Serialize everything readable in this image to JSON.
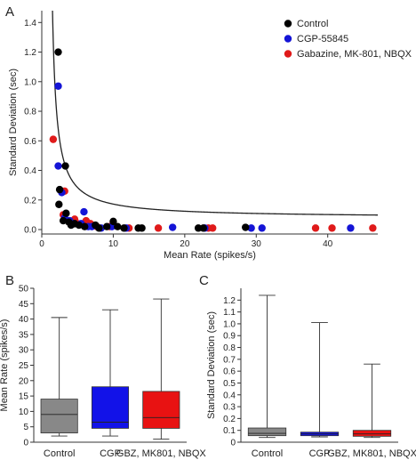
{
  "panels": {
    "A": "A",
    "B": "B",
    "C": "C"
  },
  "colors": {
    "control_scatter": "#000000",
    "cgp_scatter": "#1414d6",
    "gbz_scatter": "#e01a1a",
    "control_box": "#888888",
    "cgp_box": "#1212e8",
    "gbz_box": "#e81212",
    "fit_line": "#222222"
  },
  "chart_data": [
    {
      "type": "scatter",
      "xlabel": "Mean Rate (spikes/s)",
      "ylabel": "Standard Deviation (sec)",
      "xlim": [
        0,
        47
      ],
      "ylim": [
        -0.03,
        1.48
      ],
      "xticks": [
        0,
        10,
        20,
        30,
        40
      ],
      "yticks": [
        0.0,
        0.2,
        0.4,
        0.6,
        0.8,
        1.0,
        1.2,
        1.4
      ],
      "ytick_labels": [
        "0.0",
        "0.2",
        "0.4",
        "0.6",
        "0.8",
        "1.0",
        "1.2",
        "1.4"
      ],
      "legend": {
        "placement": "top-right"
      },
      "fit": {
        "type": "reciprocal",
        "a": 0.08,
        "k": 0.84,
        "x0": 0.9
      },
      "series": [
        {
          "name": "Control",
          "color": "#000000",
          "points": [
            [
              2.3,
              1.2
            ],
            [
              3.3,
              0.43
            ],
            [
              2.5,
              0.27
            ],
            [
              2.4,
              0.17
            ],
            [
              3.4,
              0.11
            ],
            [
              3.0,
              0.06
            ],
            [
              3.8,
              0.05
            ],
            [
              4.1,
              0.03
            ],
            [
              4.6,
              0.04
            ],
            [
              5.2,
              0.03
            ],
            [
              6.0,
              0.02
            ],
            [
              7.5,
              0.03
            ],
            [
              8.0,
              0.01
            ],
            [
              9.1,
              0.02
            ],
            [
              10.0,
              0.055
            ],
            [
              10.6,
              0.02
            ],
            [
              11.5,
              0.01
            ],
            [
              13.5,
              0.01
            ],
            [
              14.0,
              0.01
            ],
            [
              21.9,
              0.01
            ],
            [
              22.6,
              0.01
            ],
            [
              28.5,
              0.015
            ]
          ]
        },
        {
          "name": "CGP-55845",
          "color": "#1414d6",
          "points": [
            [
              2.3,
              0.97
            ],
            [
              2.3,
              0.43
            ],
            [
              2.8,
              0.25
            ],
            [
              3.2,
              0.08
            ],
            [
              3.9,
              0.06
            ],
            [
              4.5,
              0.04
            ],
            [
              5.5,
              0.04
            ],
            [
              5.9,
              0.12
            ],
            [
              6.5,
              0.02
            ],
            [
              7.0,
              0.02
            ],
            [
              8.3,
              0.01
            ],
            [
              9.8,
              0.02
            ],
            [
              11.8,
              0.01
            ],
            [
              18.3,
              0.015
            ],
            [
              22.8,
              0.01
            ],
            [
              29.3,
              0.01
            ],
            [
              30.8,
              0.01
            ],
            [
              43.2,
              0.01
            ]
          ]
        },
        {
          "name": "Gabazine, MK-801, NBQX",
          "color": "#e01a1a",
          "points": [
            [
              1.6,
              0.61
            ],
            [
              3.2,
              0.26
            ],
            [
              3.0,
              0.1
            ],
            [
              4.6,
              0.07
            ],
            [
              5.0,
              0.04
            ],
            [
              6.2,
              0.06
            ],
            [
              6.8,
              0.04
            ],
            [
              7.7,
              0.02
            ],
            [
              9.5,
              0.02
            ],
            [
              12.2,
              0.01
            ],
            [
              16.3,
              0.01
            ],
            [
              23.3,
              0.01
            ],
            [
              23.9,
              0.01
            ],
            [
              38.3,
              0.01
            ],
            [
              40.6,
              0.01
            ],
            [
              46.3,
              0.01
            ]
          ]
        }
      ]
    },
    {
      "type": "box",
      "ylabel": "Mean Rate (spikes/s)",
      "ylim": [
        0,
        50
      ],
      "yticks": [
        0,
        5,
        10,
        15,
        20,
        25,
        30,
        35,
        40,
        45,
        50
      ],
      "categories": [
        "Control",
        "CGP",
        "GBZ, MK801, NBQX"
      ],
      "boxes": [
        {
          "min": 2.0,
          "q1": 3.0,
          "median": 9.0,
          "q3": 14.0,
          "max": 40.5,
          "color": "#888888"
        },
        {
          "min": 2.0,
          "q1": 4.5,
          "median": 6.5,
          "q3": 18.0,
          "max": 43.0,
          "color": "#1212e8"
        },
        {
          "min": 1.0,
          "q1": 4.5,
          "median": 8.0,
          "q3": 16.5,
          "max": 46.5,
          "color": "#e81212"
        }
      ]
    },
    {
      "type": "box",
      "ylabel": "Standard Deviation (sec)",
      "ylim": [
        0,
        1.3
      ],
      "yticks": [
        0,
        0.1,
        0.2,
        0.3,
        0.4,
        0.5,
        0.6,
        0.7,
        0.8,
        0.9,
        1.0,
        1.1,
        1.2
      ],
      "ytick_labels": [
        "0",
        "0.1",
        "0.2",
        "0.3",
        "0.4",
        "0.5",
        "0.6",
        "0.7",
        "0.8",
        "0.9",
        "1.0",
        "1.1",
        "1.2"
      ],
      "categories": [
        "Control",
        "CGP",
        "GBZ, MK801, NBQX"
      ],
      "boxes": [
        {
          "min": 0.04,
          "q1": 0.055,
          "median": 0.075,
          "q3": 0.12,
          "max": 1.24,
          "color": "#888888"
        },
        {
          "min": 0.045,
          "q1": 0.055,
          "median": 0.07,
          "q3": 0.085,
          "max": 1.01,
          "color": "#1212e8"
        },
        {
          "min": 0.04,
          "q1": 0.05,
          "median": 0.07,
          "q3": 0.1,
          "max": 0.66,
          "color": "#e81212"
        }
      ]
    }
  ]
}
